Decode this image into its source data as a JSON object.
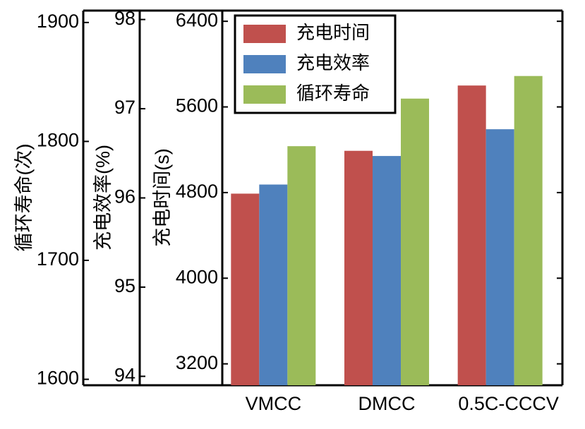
{
  "chart_data": {
    "type": "bar",
    "categories": [
      "VMCC",
      "DMCC",
      "0.5C-CCCV"
    ],
    "series": [
      {
        "name": "充电时间",
        "color": "#c0504d",
        "axis": "y",
        "values": [
          4790,
          5190,
          5800
        ]
      },
      {
        "name": "充电效率",
        "color": "#4f81bd",
        "axis": "y2",
        "values": [
          96.15,
          96.47,
          96.77
        ]
      },
      {
        "name": "循环寿命",
        "color": "#9bbb59",
        "axis": "y3",
        "values": [
          1796,
          1836,
          1855
        ]
      }
    ],
    "ylabel": "充电时间(s)",
    "ylim": [
      3000,
      6500
    ],
    "yticks": [
      3200,
      4000,
      4800,
      5600,
      6400
    ],
    "y2label": "充电效率(%)",
    "y2lim": [
      93.9,
      98.1
    ],
    "y2ticks": [
      94,
      95,
      96,
      97,
      98
    ],
    "y3label": "循环寿命(次)",
    "y3lim": [
      1595,
      1910
    ],
    "y3ticks": [
      1600,
      1700,
      1800,
      1900
    ],
    "legend": "upper left"
  }
}
